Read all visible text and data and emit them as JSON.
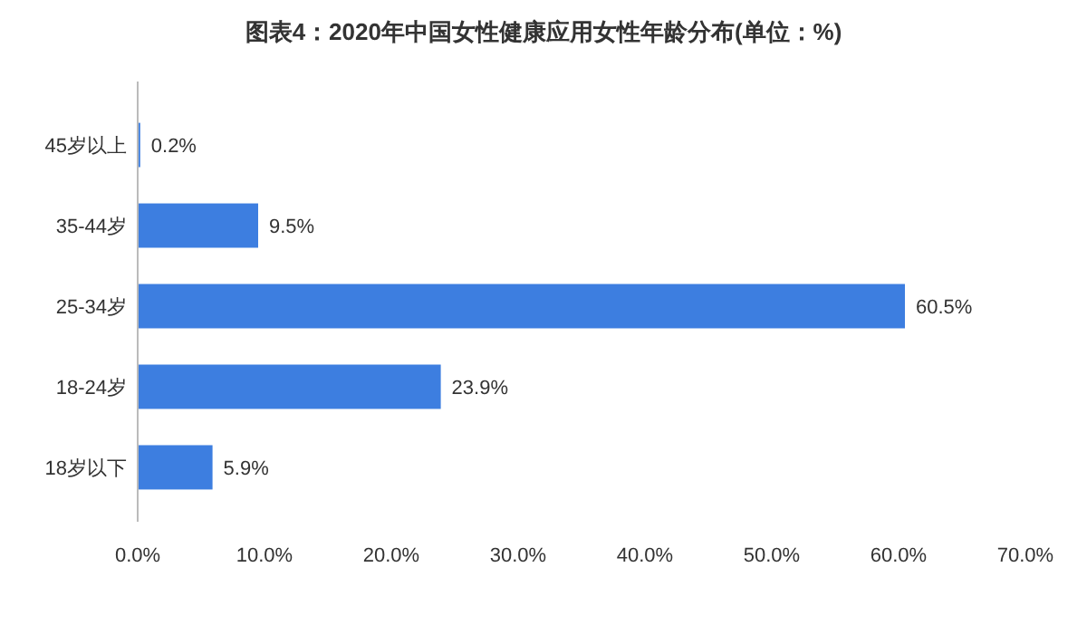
{
  "chart_data": {
    "type": "bar",
    "orientation": "horizontal",
    "title": "图表4：2020年中国女性健康应用女性年龄分布(单位：%)",
    "categories": [
      "45岁以上",
      "35-44岁",
      "25-34岁",
      "18-24岁",
      "18岁以下"
    ],
    "values": [
      0.2,
      9.5,
      60.5,
      23.9,
      5.9
    ],
    "value_labels": [
      "0.2%",
      "9.5%",
      "60.5%",
      "23.9%",
      "5.9%"
    ],
    "color": "#3d7ee0",
    "xlim": [
      0,
      70
    ],
    "xticks": [
      {
        "value": 0,
        "label": "0.0%"
      },
      {
        "value": 10,
        "label": "10.0%"
      },
      {
        "value": 20,
        "label": "20.0%"
      },
      {
        "value": 30,
        "label": "30.0%"
      },
      {
        "value": 40,
        "label": "40.0%"
      },
      {
        "value": 50,
        "label": "50.0%"
      },
      {
        "value": 60,
        "label": "60.0%"
      },
      {
        "value": 70,
        "label": "70.0%"
      }
    ],
    "grid": false
  }
}
